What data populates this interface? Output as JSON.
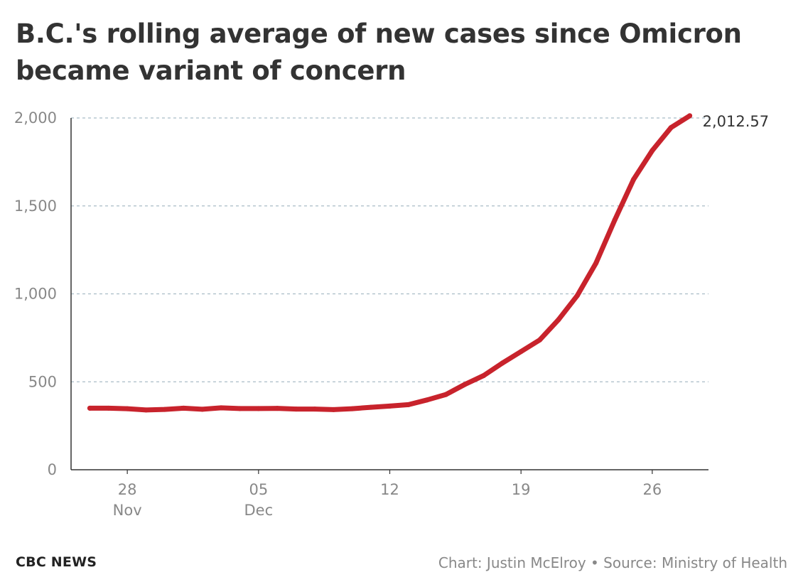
{
  "chart_data": {
    "type": "line",
    "title": "B.C.'s rolling average of new cases since Omicron became variant of concern",
    "xlabel": "",
    "ylabel": "",
    "ylim": [
      0,
      2000
    ],
    "yticks": [
      0,
      500,
      1000,
      1500,
      2000
    ],
    "ytick_labels": [
      "0",
      "500",
      "1,000",
      "1,500",
      "2,000"
    ],
    "xlim": [
      "2021-11-25",
      "2021-12-29"
    ],
    "xticks": [
      {
        "date": "2021-11-28",
        "day": "28",
        "month": "Nov"
      },
      {
        "date": "2021-12-05",
        "day": "05",
        "month": "Dec"
      },
      {
        "date": "2021-12-12",
        "day": "12",
        "month": ""
      },
      {
        "date": "2021-12-19",
        "day": "19",
        "month": ""
      },
      {
        "date": "2021-12-26",
        "day": "26",
        "month": ""
      }
    ],
    "grid": true,
    "series": [
      {
        "color": "#c8232c",
        "x": [
          "2021-11-26",
          "2021-11-27",
          "2021-11-28",
          "2021-11-29",
          "2021-11-30",
          "2021-12-01",
          "2021-12-02",
          "2021-12-03",
          "2021-12-04",
          "2021-12-05",
          "2021-12-06",
          "2021-12-07",
          "2021-12-08",
          "2021-12-09",
          "2021-12-10",
          "2021-12-11",
          "2021-12-12",
          "2021-12-13",
          "2021-12-14",
          "2021-12-15",
          "2021-12-16",
          "2021-12-17",
          "2021-12-18",
          "2021-12-19",
          "2021-12-20",
          "2021-12-21",
          "2021-12-22",
          "2021-12-23",
          "2021-12-24",
          "2021-12-25",
          "2021-12-26",
          "2021-12-27",
          "2021-12-28"
        ],
        "values": [
          350,
          350,
          347,
          340,
          343,
          350,
          344,
          352,
          348,
          348,
          349,
          345,
          345,
          342,
          347,
          355,
          362,
          370,
          397,
          428,
          485,
          535,
          606,
          672,
          738,
          853,
          990,
          1175,
          1420,
          1650,
          1815,
          1945,
          2012.57
        ]
      }
    ],
    "end_label": "2,012.57"
  },
  "footer": {
    "brand": "CBC NEWS",
    "credit": "Chart: Justin McElroy • Source: Ministry of Health"
  }
}
